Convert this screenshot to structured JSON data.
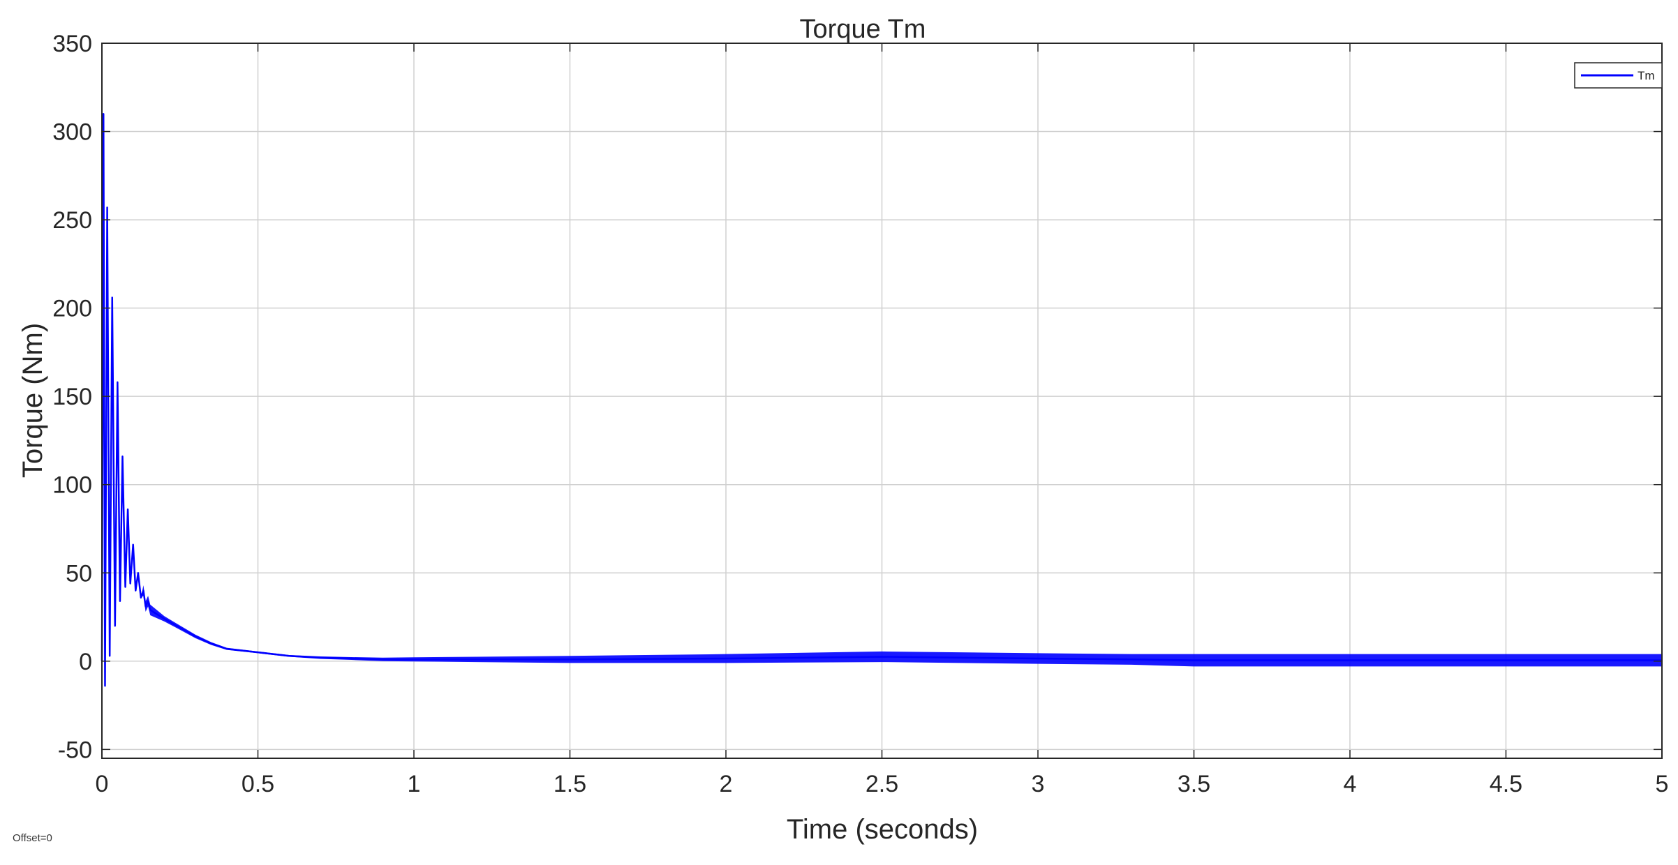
{
  "footer": {
    "offset": "Offset=0"
  },
  "chart_data": {
    "type": "line",
    "title": "Torque Tm",
    "xlabel": "Time (seconds)",
    "ylabel": "Torque (Nm)",
    "xlim": [
      0,
      5
    ],
    "ylim": [
      -55,
      350
    ],
    "xticks": [
      0,
      0.5,
      1,
      1.5,
      2,
      2.5,
      3,
      3.5,
      4,
      4.5,
      5
    ],
    "xtick_labels": [
      "0",
      "0.5",
      "1",
      "1.5",
      "2",
      "2.5",
      "3",
      "3.5",
      "4",
      "4.5",
      "5"
    ],
    "yticks": [
      -50,
      0,
      50,
      100,
      150,
      200,
      250,
      300,
      350
    ],
    "ytick_labels": [
      "-50",
      "0",
      "50",
      "100",
      "150",
      "200",
      "250",
      "300",
      "350"
    ],
    "grid": true,
    "legend_position": "top-right",
    "series": [
      {
        "name": "Tm",
        "color": "#0000ff",
        "x": [
          0,
          0.005,
          0.01,
          0.017,
          0.025,
          0.033,
          0.042,
          0.05,
          0.058,
          0.066,
          0.075,
          0.083,
          0.091,
          0.1,
          0.108,
          0.116,
          0.125,
          0.133,
          0.14,
          0.148,
          0.155,
          0.2,
          0.25,
          0.3,
          0.35,
          0.4,
          0.5,
          0.6,
          0.7,
          0.8,
          0.9,
          1.0,
          1.2,
          1.5,
          2.0,
          2.5,
          3.0,
          3.3,
          3.5,
          4.0,
          4.5,
          5.0
        ],
        "values": [
          0,
          310,
          -14,
          257,
          3,
          206,
          20,
          158,
          34,
          116,
          42,
          86,
          44,
          66,
          40,
          50,
          36,
          40,
          31,
          34,
          29,
          24,
          19,
          14,
          10,
          7,
          5,
          3,
          2,
          1.5,
          1,
          1,
          1,
          1,
          1.5,
          2.5,
          1.5,
          1,
          0.5,
          0.5,
          0.5,
          0.5
        ],
        "band_halfwidth": [
          0,
          0,
          0,
          0,
          0,
          0,
          0,
          0,
          0,
          0,
          0,
          0,
          0,
          0,
          0,
          0,
          0,
          3,
          3,
          3,
          3,
          1.5,
          1.2,
          1,
          0.8,
          0.6,
          0.5,
          0.5,
          0.7,
          0.8,
          1.0,
          1.2,
          1.5,
          2,
          2.5,
          3,
          3,
          3,
          3.5,
          3.5,
          3.5,
          3.5
        ]
      }
    ]
  }
}
